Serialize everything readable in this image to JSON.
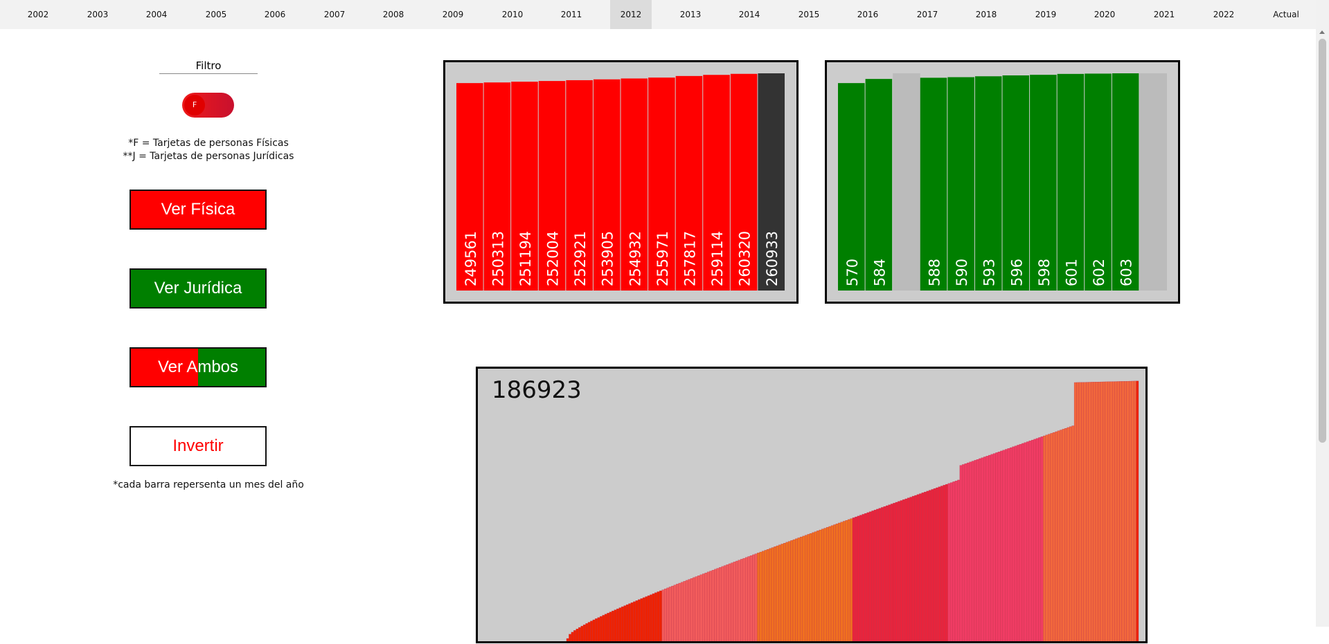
{
  "nav": {
    "years": [
      "2002",
      "2003",
      "2004",
      "2005",
      "2006",
      "2007",
      "2008",
      "2009",
      "2010",
      "2011",
      "2012",
      "2013",
      "2014",
      "2015",
      "2016",
      "2017",
      "2018",
      "2019",
      "2020",
      "2021",
      "2022",
      "Actual"
    ],
    "active": "2012"
  },
  "sidebar": {
    "filter_label": "Filtro",
    "toggle_label": "F",
    "note_fisica": "*F = Tarjetas de personas Físicas",
    "note_juridica": "**J = Tarjetas de personas Jurídicas",
    "btn_fisica": "Ver Física",
    "btn_juridica": "Ver Jurídica",
    "btn_ambos": "Ver Ambos",
    "btn_invertir": "Invertir",
    "bar_note": "*cada barra repersenta un mes del año"
  },
  "colors": {
    "fisica": "#ff0000",
    "juridica": "#007f00",
    "background": "#cccccc",
    "current": "#333333"
  },
  "chart_data": [
    {
      "type": "bar",
      "values": [
        249561,
        250313,
        251194,
        252004,
        252921,
        253905,
        254932,
        255971,
        257817,
        259114,
        260320,
        260933
      ],
      "highlight_index": 11,
      "ylim": [
        0,
        260933
      ]
    },
    {
      "type": "bar",
      "values": [
        570,
        584,
        null,
        588,
        590,
        593,
        596,
        598,
        601,
        602,
        603,
        null
      ],
      "ylim": [
        0,
        603
      ]
    },
    {
      "type": "bar",
      "value_label": "186923",
      "bar_count": 240,
      "trend": "increasing"
    }
  ]
}
